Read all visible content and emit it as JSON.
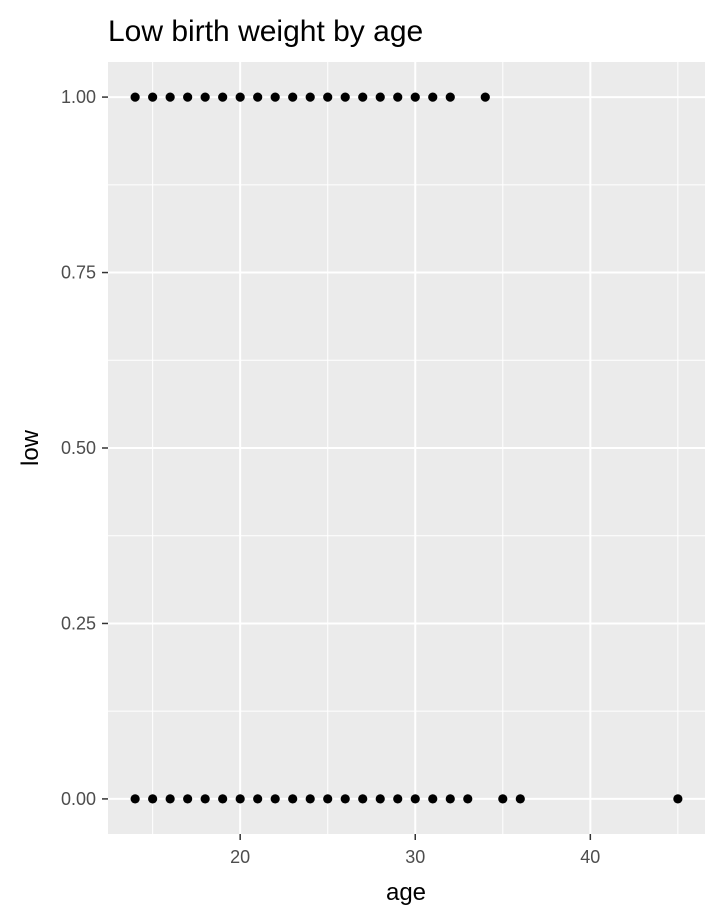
{
  "chart_data": {
    "type": "scatter",
    "title": "Low birth weight by age",
    "xlabel": "age",
    "ylabel": "low",
    "xlim": [
      12.45,
      46.55
    ],
    "ylim": [
      -0.05,
      1.05
    ],
    "x_ticks": [
      20,
      30,
      40
    ],
    "x_tick_labels": [
      "20",
      "30",
      "40"
    ],
    "x_minor_ticks": [
      15,
      25,
      35,
      45
    ],
    "y_ticks": [
      0,
      0.25,
      0.5,
      0.75,
      1.0
    ],
    "y_tick_labels": [
      "0.00",
      "0.25",
      "0.50",
      "0.75",
      "1.00"
    ],
    "y_minor_ticks": [
      0.125,
      0.375,
      0.625,
      0.875
    ],
    "grid": true,
    "colors": {
      "panel": "#ebebeb",
      "grid": "#ffffff",
      "point": "#000000",
      "tick": "#333333"
    },
    "points": [
      {
        "x": 14,
        "y": 1
      },
      {
        "x": 15,
        "y": 1
      },
      {
        "x": 16,
        "y": 1
      },
      {
        "x": 17,
        "y": 1
      },
      {
        "x": 18,
        "y": 1
      },
      {
        "x": 19,
        "y": 1
      },
      {
        "x": 20,
        "y": 1
      },
      {
        "x": 21,
        "y": 1
      },
      {
        "x": 22,
        "y": 1
      },
      {
        "x": 23,
        "y": 1
      },
      {
        "x": 24,
        "y": 1
      },
      {
        "x": 25,
        "y": 1
      },
      {
        "x": 26,
        "y": 1
      },
      {
        "x": 27,
        "y": 1
      },
      {
        "x": 28,
        "y": 1
      },
      {
        "x": 29,
        "y": 1
      },
      {
        "x": 30,
        "y": 1
      },
      {
        "x": 31,
        "y": 1
      },
      {
        "x": 32,
        "y": 1
      },
      {
        "x": 34,
        "y": 1
      },
      {
        "x": 14,
        "y": 0
      },
      {
        "x": 15,
        "y": 0
      },
      {
        "x": 16,
        "y": 0
      },
      {
        "x": 17,
        "y": 0
      },
      {
        "x": 18,
        "y": 0
      },
      {
        "x": 19,
        "y": 0
      },
      {
        "x": 20,
        "y": 0
      },
      {
        "x": 21,
        "y": 0
      },
      {
        "x": 22,
        "y": 0
      },
      {
        "x": 23,
        "y": 0
      },
      {
        "x": 24,
        "y": 0
      },
      {
        "x": 25,
        "y": 0
      },
      {
        "x": 26,
        "y": 0
      },
      {
        "x": 27,
        "y": 0
      },
      {
        "x": 28,
        "y": 0
      },
      {
        "x": 29,
        "y": 0
      },
      {
        "x": 30,
        "y": 0
      },
      {
        "x": 31,
        "y": 0
      },
      {
        "x": 32,
        "y": 0
      },
      {
        "x": 33,
        "y": 0
      },
      {
        "x": 35,
        "y": 0
      },
      {
        "x": 36,
        "y": 0
      },
      {
        "x": 45,
        "y": 0
      }
    ]
  }
}
